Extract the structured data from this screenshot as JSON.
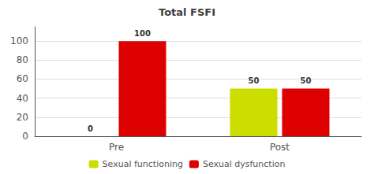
{
  "chart_data": {
    "type": "bar",
    "title": "Total FSFI",
    "categories": [
      "Pre",
      "Post"
    ],
    "series": [
      {
        "name": "Sexual functioning",
        "color": "#CCDD00",
        "values": [
          0,
          50
        ]
      },
      {
        "name": "Sexual dysfunction",
        "color": "#DD0000",
        "values": [
          100,
          50
        ]
      }
    ],
    "ylim": [
      0,
      115
    ],
    "yticks": [
      0,
      20,
      40,
      60,
      80,
      100
    ],
    "grid": true,
    "legend": "bottom",
    "data_labels": true
  }
}
